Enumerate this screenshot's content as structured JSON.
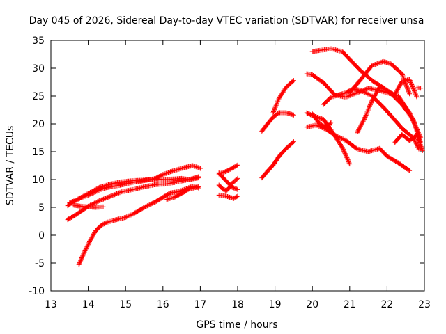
{
  "chart_data": {
    "type": "scatter",
    "title": "Day 045 of 2026, Sidereal Day-to-day VTEC variation (SDTVAR) for receiver unsa",
    "xlabel": "GPS time / hours",
    "ylabel": "SDTVAR / TECUs",
    "xlim": [
      13,
      23
    ],
    "ylim": [
      -10,
      35
    ],
    "xticks": [
      "13",
      "14",
      "15",
      "16",
      "17",
      "18",
      "19",
      "20",
      "21",
      "22",
      "23"
    ],
    "yticks": [
      "-10",
      "-5",
      "0",
      "5",
      "10",
      "15",
      "20",
      "25",
      "30",
      "35"
    ],
    "grid": false,
    "marker": "+",
    "color": "#ff0000",
    "series": [
      {
        "name": "track-1",
        "x": [
          13.45,
          13.6,
          13.8,
          14.0,
          14.2,
          14.4,
          14.6,
          14.8,
          15.0,
          15.2,
          15.4,
          15.6,
          15.8,
          16.0,
          16.2,
          16.4,
          16.6,
          16.8,
          17.0
        ],
        "y": [
          5.3,
          6.0,
          6.7,
          7.2,
          7.8,
          8.4,
          8.7,
          8.9,
          9.2,
          9.5,
          9.7,
          9.9,
          10.2,
          10.9,
          11.4,
          11.8,
          12.2,
          12.5,
          12.0
        ]
      },
      {
        "name": "track-2",
        "x": [
          13.5,
          13.7,
          14.0,
          14.3,
          14.6,
          14.9,
          15.2,
          15.5,
          15.8,
          16.1,
          16.3,
          16.5,
          16.7,
          16.95
        ],
        "y": [
          5.8,
          6.4,
          7.5,
          8.6,
          9.2,
          9.6,
          9.8,
          9.9,
          10.1,
          10.0,
          10.1,
          10.2,
          10.0,
          10.3
        ]
      },
      {
        "name": "track-3",
        "x": [
          13.45,
          13.7,
          14.0,
          14.3,
          14.6,
          14.9,
          15.2,
          15.5,
          15.8,
          16.1,
          16.4,
          16.7,
          16.95
        ],
        "y": [
          2.8,
          3.8,
          5.2,
          6.2,
          7.0,
          7.8,
          8.2,
          8.7,
          9.1,
          9.2,
          9.6,
          10.0,
          10.5
        ]
      },
      {
        "name": "track-4",
        "x": [
          13.6,
          13.8,
          14.0,
          14.2,
          14.4
        ],
        "y": [
          5.4,
          5.2,
          5.1,
          5.0,
          5.1
        ]
      },
      {
        "name": "track-5",
        "x": [
          13.75,
          13.9,
          14.05,
          14.2,
          14.35,
          14.5,
          14.7,
          15.0,
          15.2,
          15.5,
          15.8,
          16.0,
          16.2,
          16.4,
          16.6,
          16.8,
          16.95
        ],
        "y": [
          -5.3,
          -3.0,
          -1.0,
          0.8,
          1.8,
          2.3,
          2.7,
          3.2,
          3.8,
          5.0,
          6.0,
          6.8,
          7.6,
          7.8,
          8.3,
          8.8,
          8.5
        ]
      },
      {
        "name": "track-6",
        "x": [
          16.1,
          16.3,
          16.5,
          16.7,
          16.95
        ],
        "y": [
          6.4,
          6.8,
          7.5,
          8.3,
          8.7
        ]
      },
      {
        "name": "track-7",
        "x": [
          17.5,
          17.7,
          17.9,
          18.0
        ],
        "y": [
          11.0,
          11.5,
          12.2,
          12.6
        ]
      },
      {
        "name": "track-8",
        "x": [
          17.5,
          17.6,
          17.7,
          17.8,
          17.9,
          18.0
        ],
        "y": [
          9.0,
          8.3,
          8.0,
          8.7,
          8.5,
          8.2
        ]
      },
      {
        "name": "track-9",
        "x": [
          17.5,
          17.7,
          17.9,
          18.0
        ],
        "y": [
          7.2,
          7.0,
          6.6,
          7.0
        ]
      },
      {
        "name": "track-10",
        "x": [
          17.5,
          17.6,
          17.8,
          17.9,
          18.0
        ],
        "y": [
          11.2,
          10.4,
          9.0,
          9.6,
          10.2
        ]
      },
      {
        "name": "track-11",
        "x": [
          18.65,
          18.8,
          18.95,
          19.1,
          19.3,
          19.5
        ],
        "y": [
          10.3,
          11.5,
          12.6,
          14.1,
          15.6,
          16.8
        ]
      },
      {
        "name": "track-12",
        "x": [
          18.65,
          18.8,
          18.95,
          19.1,
          19.3,
          19.5
        ],
        "y": [
          18.7,
          20.0,
          21.2,
          22.0,
          22.0,
          21.6
        ]
      },
      {
        "name": "track-13",
        "x": [
          18.95,
          19.1,
          19.3,
          19.5
        ],
        "y": [
          22.0,
          24.5,
          26.6,
          27.8
        ]
      },
      {
        "name": "track-14",
        "x": [
          19.85,
          20.0,
          20.3,
          20.6,
          20.9,
          21.2,
          21.5,
          21.8,
          22.0,
          22.3,
          22.6,
          22.9
        ],
        "y": [
          29.0,
          28.8,
          27.4,
          25.2,
          24.8,
          25.6,
          26.4,
          26.0,
          25.6,
          25.0,
          22.0,
          17.5
        ]
      },
      {
        "name": "track-15",
        "x": [
          20.0,
          20.2,
          20.5,
          20.8,
          21.0,
          21.3,
          21.6,
          21.9,
          22.1,
          22.4,
          22.7,
          22.9
        ],
        "y": [
          33.0,
          33.2,
          33.5,
          33.0,
          31.6,
          29.5,
          27.8,
          26.5,
          25.5,
          23.5,
          20.8,
          16.6
        ]
      },
      {
        "name": "track-16",
        "x": [
          19.85,
          20.0,
          20.3,
          20.5,
          20.8,
          21.0
        ],
        "y": [
          22.0,
          21.5,
          20.8,
          18.9,
          15.8,
          12.8
        ]
      },
      {
        "name": "track-17",
        "x": [
          19.85,
          20.1,
          20.4,
          20.6,
          20.9,
          21.2,
          21.5,
          21.8,
          22.0,
          22.3,
          22.6
        ],
        "y": [
          19.4,
          19.8,
          18.9,
          18.0,
          17.0,
          15.5,
          15.0,
          15.6,
          14.2,
          13.0,
          11.6
        ]
      },
      {
        "name": "track-18",
        "x": [
          20.0,
          20.2,
          20.4,
          20.5
        ],
        "y": [
          21.8,
          20.0,
          19.2,
          20.3
        ]
      },
      {
        "name": "track-19",
        "x": [
          20.3,
          20.5,
          20.7,
          20.9,
          21.1,
          21.3,
          21.6,
          21.9,
          22.1,
          22.4,
          22.7,
          22.85
        ],
        "y": [
          23.5,
          24.8,
          25.2,
          25.6,
          26.3,
          26.0,
          25.0,
          23.0,
          21.5,
          19.2,
          17.5,
          15.5
        ]
      },
      {
        "name": "track-20",
        "x": [
          21.2,
          21.4,
          21.6,
          21.8,
          22.0,
          22.2,
          22.4,
          22.6,
          22.8
        ],
        "y": [
          18.4,
          21.0,
          24.2,
          26.6,
          26.0,
          25.2,
          27.6,
          28.0,
          24.8
        ]
      },
      {
        "name": "track-21",
        "x": [
          21.0,
          21.3,
          21.6,
          21.9,
          22.1,
          22.4,
          22.6
        ],
        "y": [
          25.6,
          28.0,
          30.5,
          31.2,
          30.8,
          29.0,
          25.4
        ]
      },
      {
        "name": "track-22",
        "x": [
          22.2,
          22.4,
          22.6,
          22.8,
          22.95
        ],
        "y": [
          16.6,
          18.1,
          17.0,
          18.0,
          15.2
        ]
      },
      {
        "name": "track-23",
        "x": [
          22.8,
          22.9
        ],
        "y": [
          26.5,
          26.4
        ]
      }
    ]
  }
}
